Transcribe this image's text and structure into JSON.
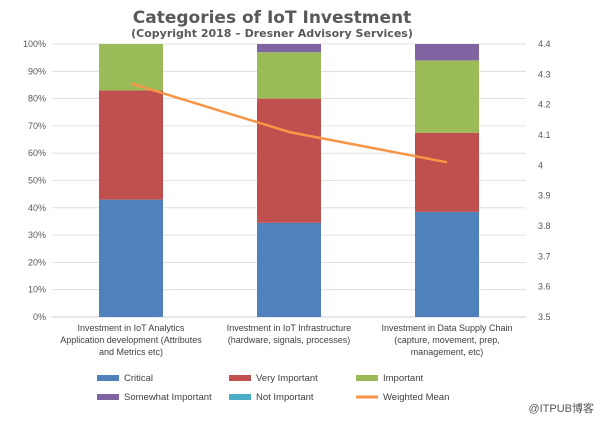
{
  "chart_data": {
    "type": "bar",
    "stacked": true,
    "title": "Categories of IoT Investment",
    "subtitle": "(Copyright 2018 – Dresner Advisory Services)",
    "categories": [
      [
        "Investment in IoT Analytics",
        "Application development (Attributes",
        "and Metrics etc)"
      ],
      [
        "Investment in IoT Infrastructure",
        "(hardware, signals, processes)"
      ],
      [
        "Investment in Data Supply Chain",
        "(capture, movement, prep,",
        "management, etc)"
      ]
    ],
    "series": [
      {
        "name": "Critical",
        "color": "#4f81bd",
        "values": [
          43,
          34.5,
          38.5
        ]
      },
      {
        "name": "Very Important",
        "color": "#c0504d",
        "values": [
          40,
          45.5,
          29
        ]
      },
      {
        "name": "Important",
        "color": "#9bbb59",
        "values": [
          17,
          17,
          26.5
        ]
      },
      {
        "name": "Somewhat Important",
        "color": "#8064a2",
        "values": [
          0,
          3,
          6
        ]
      },
      {
        "name": "Not Important",
        "color": "#4bacc6",
        "values": [
          0,
          0,
          0
        ]
      }
    ],
    "line_series": {
      "name": "Weighted Mean",
      "color": "#f79646",
      "values": [
        4.27,
        4.11,
        4.01
      ],
      "axis": "right"
    },
    "y_ticks": [
      "0%",
      "10%",
      "20%",
      "30%",
      "40%",
      "50%",
      "60%",
      "70%",
      "80%",
      "90%",
      "100%"
    ],
    "ylim": [
      0,
      100
    ],
    "y2_ticks": [
      "3.5",
      "3.6",
      "3.7",
      "3.8",
      "3.9",
      "4",
      "4.1",
      "4.2",
      "4.3",
      "4.4"
    ],
    "y2lim": [
      3.5,
      4.4
    ],
    "legend_position": "bottom"
  },
  "watermark": "@ITPUB博客"
}
